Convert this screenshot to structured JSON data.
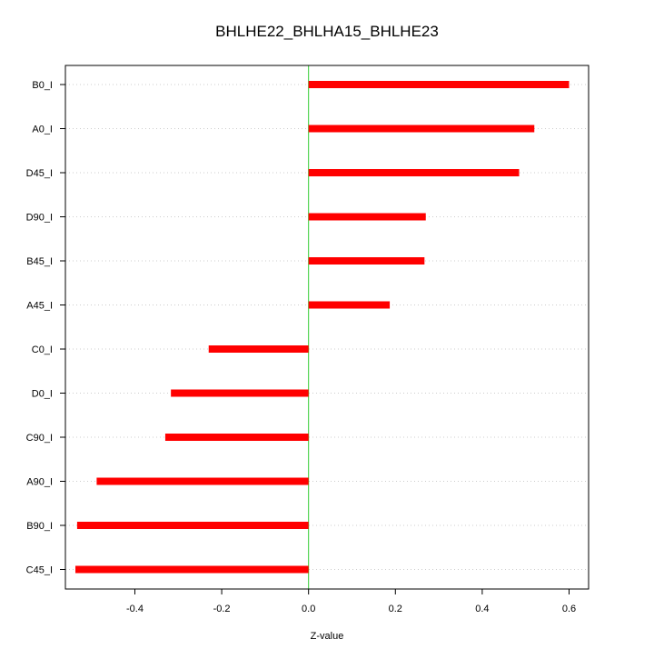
{
  "chart_data": {
    "type": "bar",
    "orientation": "horizontal",
    "title": "BHLHE22_BHLHA15_BHLHE23",
    "xlabel": "Z-value",
    "ylabel": "",
    "xlim": [
      -0.56,
      0.645
    ],
    "xticks": [
      -0.4,
      -0.2,
      0.0,
      0.2,
      0.4,
      0.6
    ],
    "xtick_labels": [
      "-0.4",
      "-0.2",
      "0.0",
      "0.2",
      "0.4",
      "0.6"
    ],
    "categories": [
      "B0_I",
      "A0_I",
      "D45_I",
      "D90_I",
      "B45_I",
      "A45_I",
      "C0_I",
      "D0_I",
      "C90_I",
      "A90_I",
      "B90_I",
      "C45_I"
    ],
    "values": [
      0.6,
      0.52,
      0.485,
      0.27,
      0.267,
      0.187,
      -0.23,
      -0.317,
      -0.33,
      -0.488,
      -0.533,
      -0.537
    ],
    "grid": "horizontal dotted",
    "bar_color": "#ff0000",
    "zero_line_color": "#33cc33",
    "grid_color": "#cccccc"
  }
}
